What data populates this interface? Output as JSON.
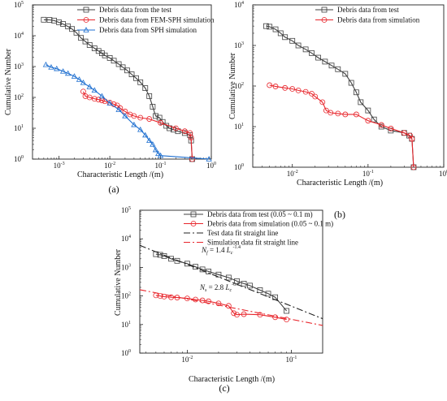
{
  "panels": [
    {
      "panel_label": "(a)",
      "chart_data": {
        "type": "line",
        "xlabel": "Characteristic Length /(m)",
        "ylabel": "Cumulative Number",
        "xscale": "log",
        "yscale": "log",
        "xlim": [
          0.0003,
          1
        ],
        "ylim": [
          1,
          100000
        ],
        "x_ticks": [
          {
            "value": 0.001,
            "base": "10",
            "exp": "-3"
          },
          {
            "value": 0.01,
            "base": "10",
            "exp": "-2"
          },
          {
            "value": 0.1,
            "base": "10",
            "exp": "-1"
          },
          {
            "value": 1,
            "base": "10",
            "exp": "0"
          }
        ],
        "y_ticks": [
          {
            "value": 1,
            "base": "10",
            "exp": "0"
          },
          {
            "value": 10,
            "base": "10",
            "exp": "1"
          },
          {
            "value": 100,
            "base": "10",
            "exp": "2"
          },
          {
            "value": 1000,
            "base": "10",
            "exp": "3"
          },
          {
            "value": 10000,
            "base": "10",
            "exp": "4"
          },
          {
            "value": 100000,
            "base": "10",
            "exp": "5"
          }
        ],
        "legend_position": "top-right",
        "series": [
          {
            "name": "Debris data from the test",
            "color": "#404040",
            "marker": "square",
            "points": [
              [
                0.0005,
                33000
              ],
              [
                0.00065,
                32500
              ],
              [
                0.0008,
                31000
              ],
              [
                0.001,
                27000
              ],
              [
                0.0012,
                24000
              ],
              [
                0.0015,
                20000
              ],
              [
                0.0018,
                16500
              ],
              [
                0.0022,
                12500
              ],
              [
                0.0027,
                8500
              ],
              [
                0.0033,
                6500
              ],
              [
                0.004,
                5000
              ],
              [
                0.005,
                3900
              ],
              [
                0.006,
                3200
              ],
              [
                0.007,
                2700
              ],
              [
                0.008,
                2300
              ],
              [
                0.01,
                1900
              ],
              [
                0.012,
                1550
              ],
              [
                0.015,
                1200
              ],
              [
                0.018,
                950
              ],
              [
                0.022,
                750
              ],
              [
                0.027,
                560
              ],
              [
                0.033,
                420
              ],
              [
                0.04,
                310
              ],
              [
                0.05,
                200
              ],
              [
                0.06,
                110
              ],
              [
                0.07,
                50
              ],
              [
                0.08,
                25
              ],
              [
                0.095,
                22
              ],
              [
                0.11,
                16
              ],
              [
                0.13,
                12
              ],
              [
                0.15,
                10
              ],
              [
                0.18,
                9
              ],
              [
                0.22,
                8
              ],
              [
                0.3,
                7
              ],
              [
                0.38,
                6
              ],
              [
                0.4,
                4
              ],
              [
                0.42,
                1
              ]
            ]
          },
          {
            "name": "Debris data from FEM-SPH simulation",
            "color": "#e8262c",
            "marker": "circle",
            "points": [
              [
                0.003,
                155
              ],
              [
                0.0033,
                110
              ],
              [
                0.004,
                100
              ],
              [
                0.005,
                90
              ],
              [
                0.006,
                85
              ],
              [
                0.007,
                80
              ],
              [
                0.008,
                75
              ],
              [
                0.01,
                68
              ],
              [
                0.012,
                60
              ],
              [
                0.014,
                55
              ],
              [
                0.016,
                45
              ],
              [
                0.02,
                35
              ],
              [
                0.025,
                28
              ],
              [
                0.03,
                25
              ],
              [
                0.04,
                22
              ],
              [
                0.06,
                20
              ],
              [
                0.1,
                15
              ],
              [
                0.2,
                10
              ],
              [
                0.3,
                8
              ],
              [
                0.38,
                7
              ],
              [
                0.4,
                5
              ],
              [
                0.42,
                1
              ]
            ]
          },
          {
            "name": "Debris data from SPH simulation",
            "color": "#1e6fd0",
            "marker": "triangle",
            "points": [
              [
                0.00055,
                1150
              ],
              [
                0.0007,
                950
              ],
              [
                0.0009,
                850
              ],
              [
                0.0012,
                700
              ],
              [
                0.0015,
                600
              ],
              [
                0.002,
                480
              ],
              [
                0.0025,
                380
              ],
              [
                0.003,
                300
              ],
              [
                0.004,
                220
              ],
              [
                0.005,
                170
              ],
              [
                0.007,
                110
              ],
              [
                0.01,
                65
              ],
              [
                0.015,
                40
              ],
              [
                0.02,
                25
              ],
              [
                0.03,
                13
              ],
              [
                0.04,
                9
              ],
              [
                0.05,
                6
              ],
              [
                0.06,
                4
              ],
              [
                0.07,
                3
              ],
              [
                0.08,
                2
              ],
              [
                0.09,
                1.5
              ],
              [
                0.1,
                1.3
              ],
              [
                0.9,
                1
              ]
            ]
          }
        ]
      }
    },
    {
      "panel_label": "(b)",
      "chart_data": {
        "type": "line",
        "xlabel": "Characteristic Length /(m)",
        "ylabel": "Cumulative Number",
        "xscale": "log",
        "yscale": "log",
        "xlim": [
          0.003,
          1
        ],
        "ylim": [
          1,
          10000
        ],
        "x_ticks": [
          {
            "value": 0.01,
            "base": "10",
            "exp": "-2"
          },
          {
            "value": 0.1,
            "base": "10",
            "exp": "-1"
          },
          {
            "value": 1,
            "base": "10",
            "exp": "0"
          }
        ],
        "y_ticks": [
          {
            "value": 1,
            "base": "10",
            "exp": "0"
          },
          {
            "value": 10,
            "base": "10",
            "exp": "1"
          },
          {
            "value": 100,
            "base": "10",
            "exp": "2"
          },
          {
            "value": 1000,
            "base": "10",
            "exp": "3"
          },
          {
            "value": 10000,
            "base": "10",
            "exp": "4"
          }
        ],
        "legend_position": "top-right",
        "series": [
          {
            "name": "Debris data from test",
            "color": "#404040",
            "marker": "square",
            "points": [
              [
                0.0045,
                3000
              ],
              [
                0.005,
                2900
              ],
              [
                0.006,
                2500
              ],
              [
                0.007,
                2000
              ],
              [
                0.008,
                1600
              ],
              [
                0.01,
                1300
              ],
              [
                0.012,
                1000
              ],
              [
                0.015,
                800
              ],
              [
                0.018,
                650
              ],
              [
                0.022,
                500
              ],
              [
                0.027,
                400
              ],
              [
                0.033,
                320
              ],
              [
                0.04,
                260
              ],
              [
                0.05,
                200
              ],
              [
                0.06,
                120
              ],
              [
                0.07,
                70
              ],
              [
                0.08,
                40
              ],
              [
                0.1,
                25
              ],
              [
                0.12,
                15
              ],
              [
                0.15,
                10
              ],
              [
                0.2,
                8
              ],
              [
                0.3,
                7
              ],
              [
                0.35,
                6
              ],
              [
                0.38,
                5
              ],
              [
                0.4,
                1
              ]
            ]
          },
          {
            "name": "Debris data from simulation",
            "color": "#e8262c",
            "marker": "circle",
            "points": [
              [
                0.005,
                105
              ],
              [
                0.006,
                98
              ],
              [
                0.008,
                90
              ],
              [
                0.01,
                85
              ],
              [
                0.012,
                78
              ],
              [
                0.015,
                72
              ],
              [
                0.018,
                65
              ],
              [
                0.02,
                55
              ],
              [
                0.025,
                40
              ],
              [
                0.028,
                25
              ],
              [
                0.032,
                22
              ],
              [
                0.04,
                21
              ],
              [
                0.05,
                20
              ],
              [
                0.07,
                20
              ],
              [
                0.1,
                14
              ],
              [
                0.15,
                11
              ],
              [
                0.2,
                9
              ],
              [
                0.3,
                7
              ],
              [
                0.36,
                6
              ],
              [
                0.38,
                5
              ],
              [
                0.4,
                1
              ]
            ]
          }
        ]
      }
    },
    {
      "panel_label": "(c)",
      "chart_data": {
        "type": "line",
        "xlabel": "Characteristic Length /(m)",
        "ylabel": "Cumulative Number",
        "xscale": "log",
        "yscale": "log",
        "xlim": [
          0.0035,
          0.2
        ],
        "ylim": [
          1,
          100000
        ],
        "x_ticks": [
          {
            "value": 0.01,
            "base": "10",
            "exp": "-2"
          },
          {
            "value": 0.1,
            "base": "10",
            "exp": "-1"
          }
        ],
        "y_ticks": [
          {
            "value": 1,
            "base": "10",
            "exp": "0"
          },
          {
            "value": 10,
            "base": "10",
            "exp": "1"
          },
          {
            "value": 100,
            "base": "10",
            "exp": "2"
          },
          {
            "value": 1000,
            "base": "10",
            "exp": "3"
          },
          {
            "value": 10000,
            "base": "10",
            "exp": "4"
          },
          {
            "value": 100000,
            "base": "10",
            "exp": "5"
          }
        ],
        "legend_position": "top-center",
        "series": [
          {
            "name": "Debris data from test (0.05 ~ 0.1 m)",
            "color": "#404040",
            "marker": "square",
            "points": [
              [
                0.005,
                2900
              ],
              [
                0.0055,
                2750
              ],
              [
                0.006,
                2500
              ],
              [
                0.007,
                2000
              ],
              [
                0.008,
                1700
              ],
              [
                0.01,
                1350
              ],
              [
                0.012,
                1050
              ],
              [
                0.014,
                850
              ],
              [
                0.016,
                720
              ],
              [
                0.02,
                560
              ],
              [
                0.025,
                440
              ],
              [
                0.03,
                330
              ],
              [
                0.035,
                270
              ],
              [
                0.04,
                230
              ],
              [
                0.05,
                160
              ],
              [
                0.06,
                120
              ],
              [
                0.07,
                90
              ],
              [
                0.09,
                30
              ]
            ]
          },
          {
            "name": "Debris data from simulation (0.05 ~ 0.1 m)",
            "color": "#e8262c",
            "marker": "circle",
            "points": [
              [
                0.005,
                105
              ],
              [
                0.0055,
                100
              ],
              [
                0.006,
                95
              ],
              [
                0.007,
                90
              ],
              [
                0.008,
                88
              ],
              [
                0.01,
                82
              ],
              [
                0.012,
                75
              ],
              [
                0.014,
                70
              ],
              [
                0.016,
                65
              ],
              [
                0.02,
                55
              ],
              [
                0.025,
                45
              ],
              [
                0.028,
                25
              ],
              [
                0.03,
                22
              ],
              [
                0.035,
                23
              ],
              [
                0.05,
                22
              ],
              [
                0.07,
                18
              ],
              [
                0.09,
                15
              ]
            ]
          },
          {
            "name": "Test data fit straight line",
            "color": "#222222",
            "dash": "8 3 2 3",
            "points": [
              [
                0.0035,
                5900
              ],
              [
                0.2,
                16
              ]
            ]
          },
          {
            "name": "Simulation data fit straight line",
            "color": "#e8262c",
            "dash": "8 3 2 3",
            "points": [
              [
                0.0035,
                166
              ],
              [
                0.2,
                9.3
              ]
            ]
          }
        ],
        "annotations": [
          {
            "id": "test-fit-eq",
            "sym": "N",
            "sub": "f",
            "mid": " = 1.4 ",
            "L": "L",
            "Lsub": "c",
            "exp": "-1.4"
          },
          {
            "id": "sim-fit-eq",
            "sym": "N",
            "sub": "s",
            "mid": " = 2.8 ",
            "L": "L",
            "Lsub": "c",
            "exp": "-0.7"
          }
        ]
      }
    }
  ]
}
